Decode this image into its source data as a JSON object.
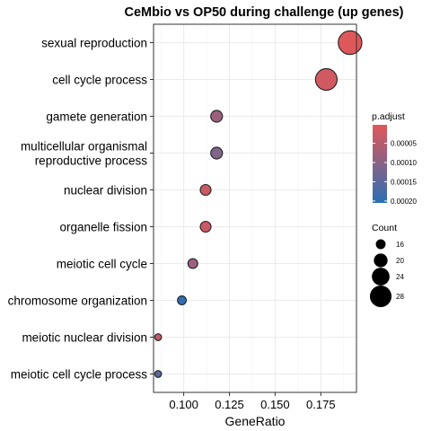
{
  "chart_data": {
    "type": "scatter",
    "title": "CeMbio vs OP50 during challenge (up genes)",
    "xlabel": "GeneRatio",
    "ylabel": "",
    "xlim": [
      0.0835,
      0.1945
    ],
    "xticks": [
      0.1,
      0.125,
      0.15,
      0.175
    ],
    "xtick_labels": [
      "0.100",
      "0.125",
      "0.150",
      "0.175"
    ],
    "grid": true,
    "categories": [
      "sexual reproduction",
      "cell cycle process",
      "gamete generation",
      "multicellular organismal reproductive process",
      "nuclear division",
      "organelle fission",
      "meiotic cell cycle",
      "chromosome organization",
      "meiotic nuclear division",
      "meiotic cell cycle process"
    ],
    "category_lines": [
      [
        "sexual reproduction"
      ],
      [
        "cell cycle process"
      ],
      [
        "gamete generation"
      ],
      [
        "multicellular organismal",
        "reproductive process"
      ],
      [
        "nuclear division"
      ],
      [
        "organelle fission"
      ],
      [
        "meiotic cell cycle"
      ],
      [
        "chromosome organization"
      ],
      [
        "meiotic nuclear division"
      ],
      [
        "meiotic cell cycle process"
      ]
    ],
    "points": [
      {
        "term": "sexual reproduction",
        "gene_ratio": 0.191,
        "count": 30,
        "p_adjust": 5e-06
      },
      {
        "term": "cell cycle process",
        "gene_ratio": 0.178,
        "count": 28,
        "p_adjust": 2e-05
      },
      {
        "term": "gamete generation",
        "gene_ratio": 0.118,
        "count": 18,
        "p_adjust": 8e-05
      },
      {
        "term": "multicellular organismal reproductive process",
        "gene_ratio": 0.118,
        "count": 18,
        "p_adjust": 0.00011
      },
      {
        "term": "nuclear division",
        "gene_ratio": 0.112,
        "count": 17,
        "p_adjust": 3e-05
      },
      {
        "term": "organelle fission",
        "gene_ratio": 0.112,
        "count": 17,
        "p_adjust": 3e-05
      },
      {
        "term": "meiotic cell cycle",
        "gene_ratio": 0.105,
        "count": 16,
        "p_adjust": 8e-05
      },
      {
        "term": "chromosome organization",
        "gene_ratio": 0.099,
        "count": 15,
        "p_adjust": 0.0002
      },
      {
        "term": "meiotic nuclear division",
        "gene_ratio": 0.086,
        "count": 13,
        "p_adjust": 4e-05
      },
      {
        "term": "meiotic cell cycle process",
        "gene_ratio": 0.086,
        "count": 13,
        "p_adjust": 0.00015
      }
    ],
    "color_legend": {
      "title": "p.adjust",
      "min": 2e-06,
      "max": 0.000205,
      "breaks": [
        5e-05,
        0.0001,
        0.00015,
        0.0002
      ],
      "break_labels": [
        "0.00005",
        "0.00010",
        "0.00015",
        "0.00020"
      ],
      "low_color": "#e15759",
      "high_color": "#2b6fb3"
    },
    "size_legend": {
      "title": "Count",
      "breaks": [
        16,
        20,
        24,
        28
      ],
      "break_labels": [
        "16",
        "20",
        "24",
        "28"
      ]
    },
    "colors": {
      "panel_border": "#333333",
      "grid_major": "#ebebeb",
      "grid_minor": "#f4f4f4",
      "point_stroke": "#222222",
      "text": "#000000",
      "tick_text": "#000000"
    }
  }
}
